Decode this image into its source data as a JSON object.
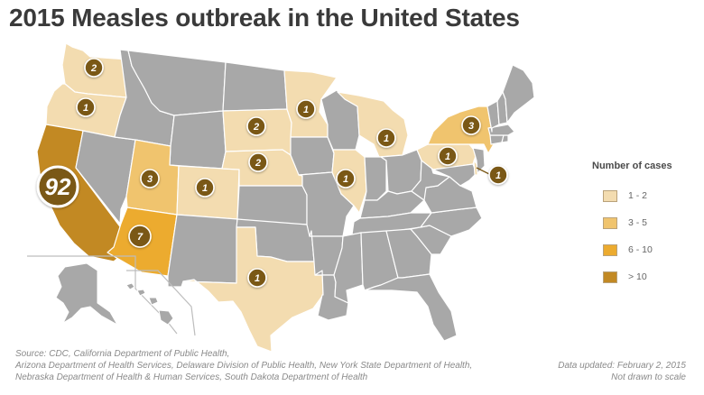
{
  "title": "2015 Measles outbreak in the United States",
  "colors": {
    "background": "#ffffff",
    "no_cases": "#a8a8a8",
    "state_border": "#ffffff",
    "range_1_2": "#f3dcb0",
    "range_3_5": "#f0c46e",
    "range_6_10": "#ecab2f",
    "range_over_10": "#c28923",
    "marker_fill": "#7a5816",
    "marker_text": "#ffffff"
  },
  "legend": {
    "title": "Number of cases",
    "items": [
      {
        "label": "1 - 2",
        "color": "#f3dcb0"
      },
      {
        "label": "3 - 5",
        "color": "#f0c46e"
      },
      {
        "label": "6 - 10",
        "color": "#ecab2f"
      },
      {
        "label": "> 10",
        "color": "#c28923"
      }
    ]
  },
  "cases": [
    {
      "state": "WA",
      "count": "2"
    },
    {
      "state": "OR",
      "count": "1"
    },
    {
      "state": "CA",
      "count": "92"
    },
    {
      "state": "UT",
      "count": "3"
    },
    {
      "state": "CO",
      "count": "1"
    },
    {
      "state": "AZ",
      "count": "7"
    },
    {
      "state": "SD",
      "count": "2"
    },
    {
      "state": "NE",
      "count": "2"
    },
    {
      "state": "MN",
      "count": "1"
    },
    {
      "state": "IL",
      "count": "1"
    },
    {
      "state": "MI",
      "count": "1"
    },
    {
      "state": "TX",
      "count": "1"
    },
    {
      "state": "NY",
      "count": "3"
    },
    {
      "state": "PA",
      "count": "1"
    },
    {
      "state": "DE",
      "count": "1"
    }
  ],
  "source_lines": [
    "Source: CDC, California Department of Public Health,",
    "Arizona Department of Health Services, Delaware Division of Public Health, New York State Department of Health,",
    "Nebraska Department of Health & Human Services, South Dakota Department of Health"
  ],
  "updated_lines": [
    "Data updated: February 2, 2015",
    "Not drawn to scale"
  ]
}
